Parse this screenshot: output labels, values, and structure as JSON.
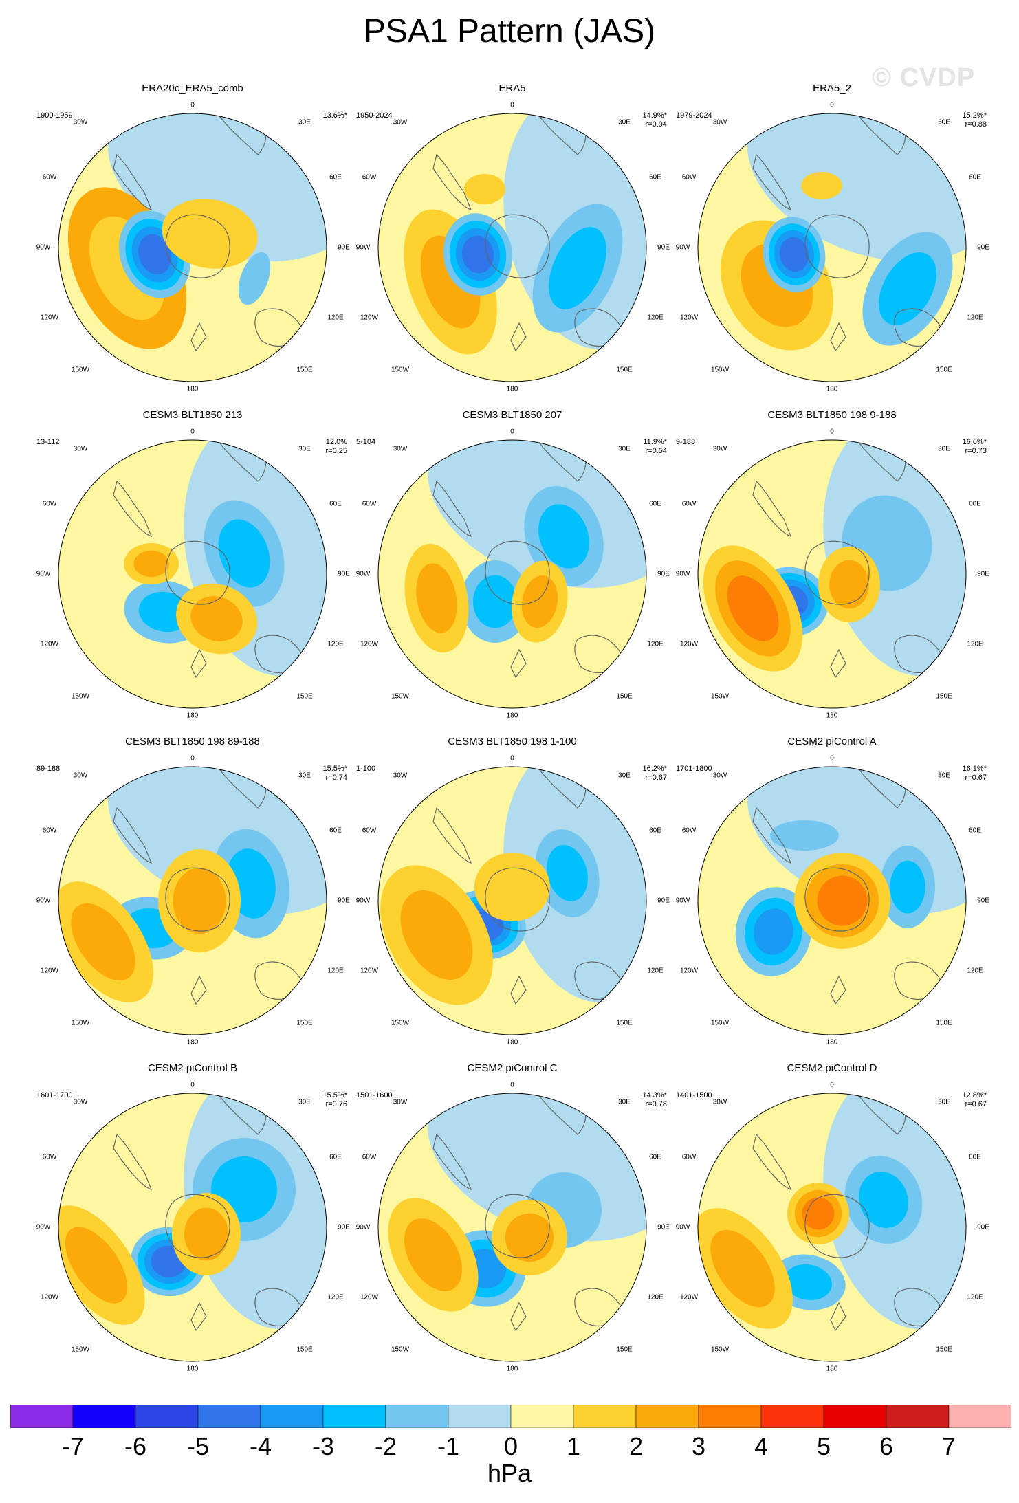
{
  "title": "PSA1 Pattern (JAS)",
  "watermark": "© CVDP",
  "unit": "hPa",
  "colors": {
    "levels": [
      "#8a2be8",
      "#1500ff",
      "#2d47e6",
      "#3075ea",
      "#199af5",
      "#00c0fe",
      "#73c6f0",
      "#b1dcf0",
      "#fcf7a0",
      "#fcd130",
      "#fca90a",
      "#fc7e05",
      "#fe320a",
      "#e80000",
      "#cf1d1d",
      "#fcb0b0"
    ],
    "continent_line": "#666666"
  },
  "colorbar_ticks": [
    "-7",
    "-6",
    "-5",
    "-4",
    "-3",
    "-2",
    "-1",
    "0",
    "1",
    "2",
    "3",
    "4",
    "5",
    "6",
    "7"
  ],
  "lon_labels": {
    "l0": "0",
    "l30e": "30E",
    "l60e": "60E",
    "l90e": "90E",
    "l120e": "120E",
    "l150e": "150E",
    "l180": "180",
    "l150w": "150W",
    "l120w": "120W",
    "l90w": "90W",
    "l60w": "60W",
    "l30w": "30W"
  },
  "panels": [
    {
      "name": "ERA20c_ERA5_comb",
      "period": "1900-1959",
      "stat1": "13.6%*",
      "stat2": ""
    },
    {
      "name": "ERA5",
      "period": "1950-2024",
      "stat1": "14.9%*",
      "stat2": "r=0.94"
    },
    {
      "name": "ERA5_2",
      "period": "1979-2024",
      "stat1": "15.2%*",
      "stat2": "r=0.88"
    },
    {
      "name": "CESM3 BLT1850 213",
      "period": "13-112",
      "stat1": "12.0%",
      "stat2": "r=0.25"
    },
    {
      "name": "CESM3 BLT1850 207",
      "period": "5-104",
      "stat1": "11.9%*",
      "stat2": "r=0.54"
    },
    {
      "name": "CESM3 BLT1850 198 9-188",
      "period": "9-188",
      "stat1": "16.6%*",
      "stat2": "r=0.73"
    },
    {
      "name": "CESM3 BLT1850 198 89-188",
      "period": "89-188",
      "stat1": "15.5%*",
      "stat2": "r=0.74"
    },
    {
      "name": "CESM3 BLT1850 198 1-100",
      "period": "1-100",
      "stat1": "16.2%*",
      "stat2": "r=0.67"
    },
    {
      "name": "CESM2 piControl A",
      "period": "1701-1800",
      "stat1": "16.1%*",
      "stat2": "r=0.67"
    },
    {
      "name": "CESM2 piControl B",
      "period": "1601-1700",
      "stat1": "15.5%*",
      "stat2": "r=0.76"
    },
    {
      "name": "CESM2 piControl C",
      "period": "1501-1600",
      "stat1": "14.3%*",
      "stat2": "r=0.78"
    },
    {
      "name": "CESM2 piControl D",
      "period": "1401-1500",
      "stat1": "12.8%*",
      "stat2": "r=0.67"
    }
  ]
}
